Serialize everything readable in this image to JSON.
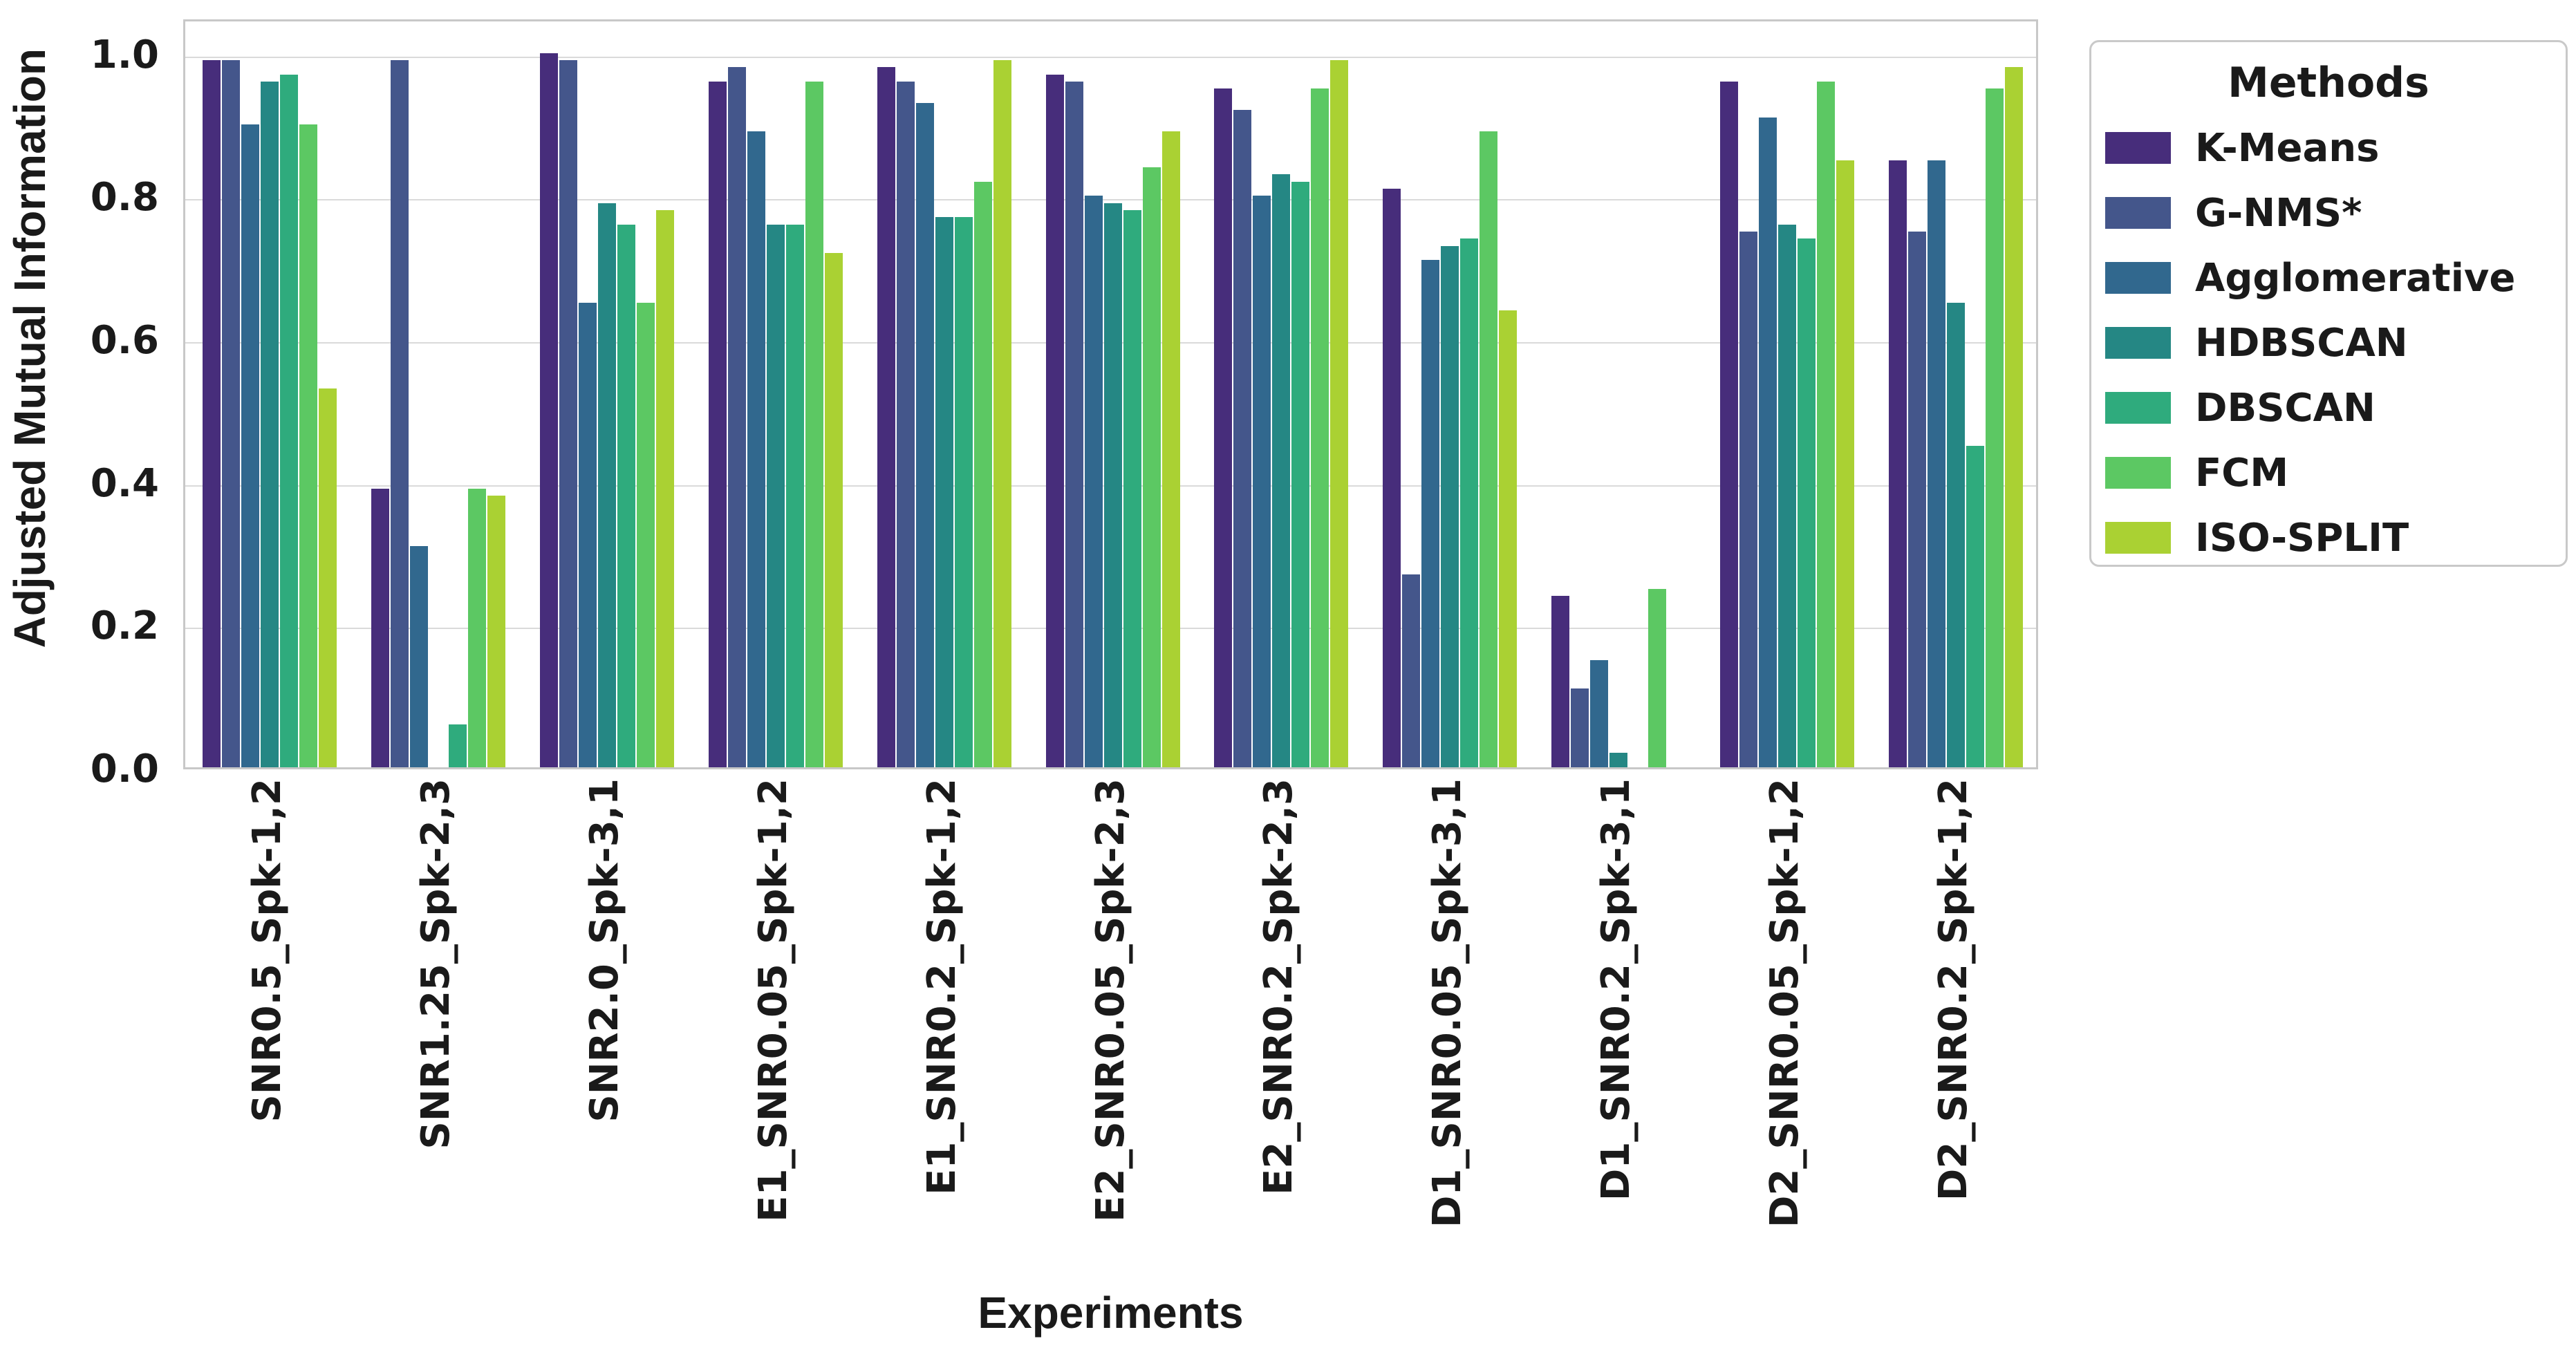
{
  "figure": {
    "background": "#ffffff",
    "plot_border_color": "#c8c8c8",
    "grid_color": "#dadada",
    "text_color": "#1a1a1a"
  },
  "chart_data": {
    "type": "bar",
    "title": "",
    "xlabel": "Experiments",
    "ylabel": "Adjusted Mutual Information",
    "legend_title": "Methods",
    "legend_position": "outside upper right",
    "grid": true,
    "ylim": [
      0.0,
      1.05
    ],
    "yticks": [
      0.0,
      0.2,
      0.4,
      0.6,
      0.8,
      1.0
    ],
    "ytick_labels": [
      "0.0",
      "0.2",
      "0.4",
      "0.6",
      "0.8",
      "1.0"
    ],
    "categories": [
      "SNR0.5_Spk-1,2",
      "SNR1.25_Spk-2,3",
      "SNR2.0_Spk-3,1",
      "E1_SNR0.05_Spk-1,2",
      "E1_SNR0.2_Spk-1,2",
      "E2_SNR0.05_Spk-2,3",
      "E2_SNR0.2_Spk-2,3",
      "D1_SNR0.05_Spk-3,1",
      "D1_SNR0.2_Spk-3,1",
      "D2_SNR0.05_Spk-1,2",
      "D2_SNR0.2_Spk-1,2"
    ],
    "series": [
      {
        "name": "K-Means",
        "color": "#472d7b",
        "values": [
          0.99,
          0.39,
          1.0,
          0.96,
          0.98,
          0.97,
          0.95,
          0.81,
          0.24,
          0.96,
          0.85
        ]
      },
      {
        "name": "G-NMS*",
        "color": "#44568b",
        "values": [
          0.99,
          0.99,
          0.99,
          0.98,
          0.96,
          0.96,
          0.92,
          0.27,
          0.11,
          0.75,
          0.75
        ]
      },
      {
        "name": "Agglomerative",
        "color": "#31688e",
        "values": [
          0.9,
          0.31,
          0.65,
          0.89,
          0.93,
          0.8,
          0.8,
          0.71,
          0.15,
          0.91,
          0.85
        ]
      },
      {
        "name": "HDBSCAN",
        "color": "#258784",
        "values": [
          0.96,
          0.0,
          0.79,
          0.76,
          0.77,
          0.79,
          0.83,
          0.73,
          0.02,
          0.76,
          0.65
        ]
      },
      {
        "name": "DBSCAN",
        "color": "#2fab7d",
        "values": [
          0.97,
          0.06,
          0.76,
          0.76,
          0.77,
          0.78,
          0.82,
          0.74,
          0.0,
          0.74,
          0.45
        ]
      },
      {
        "name": "FCM",
        "color": "#5cc863",
        "values": [
          0.9,
          0.39,
          0.65,
          0.96,
          0.82,
          0.84,
          0.95,
          0.89,
          0.25,
          0.96,
          0.95
        ]
      },
      {
        "name": "ISO-SPLIT",
        "color": "#aad133",
        "values": [
          0.53,
          0.38,
          0.78,
          0.72,
          0.99,
          0.89,
          0.99,
          0.64,
          0.0,
          0.85,
          0.98
        ]
      }
    ]
  }
}
